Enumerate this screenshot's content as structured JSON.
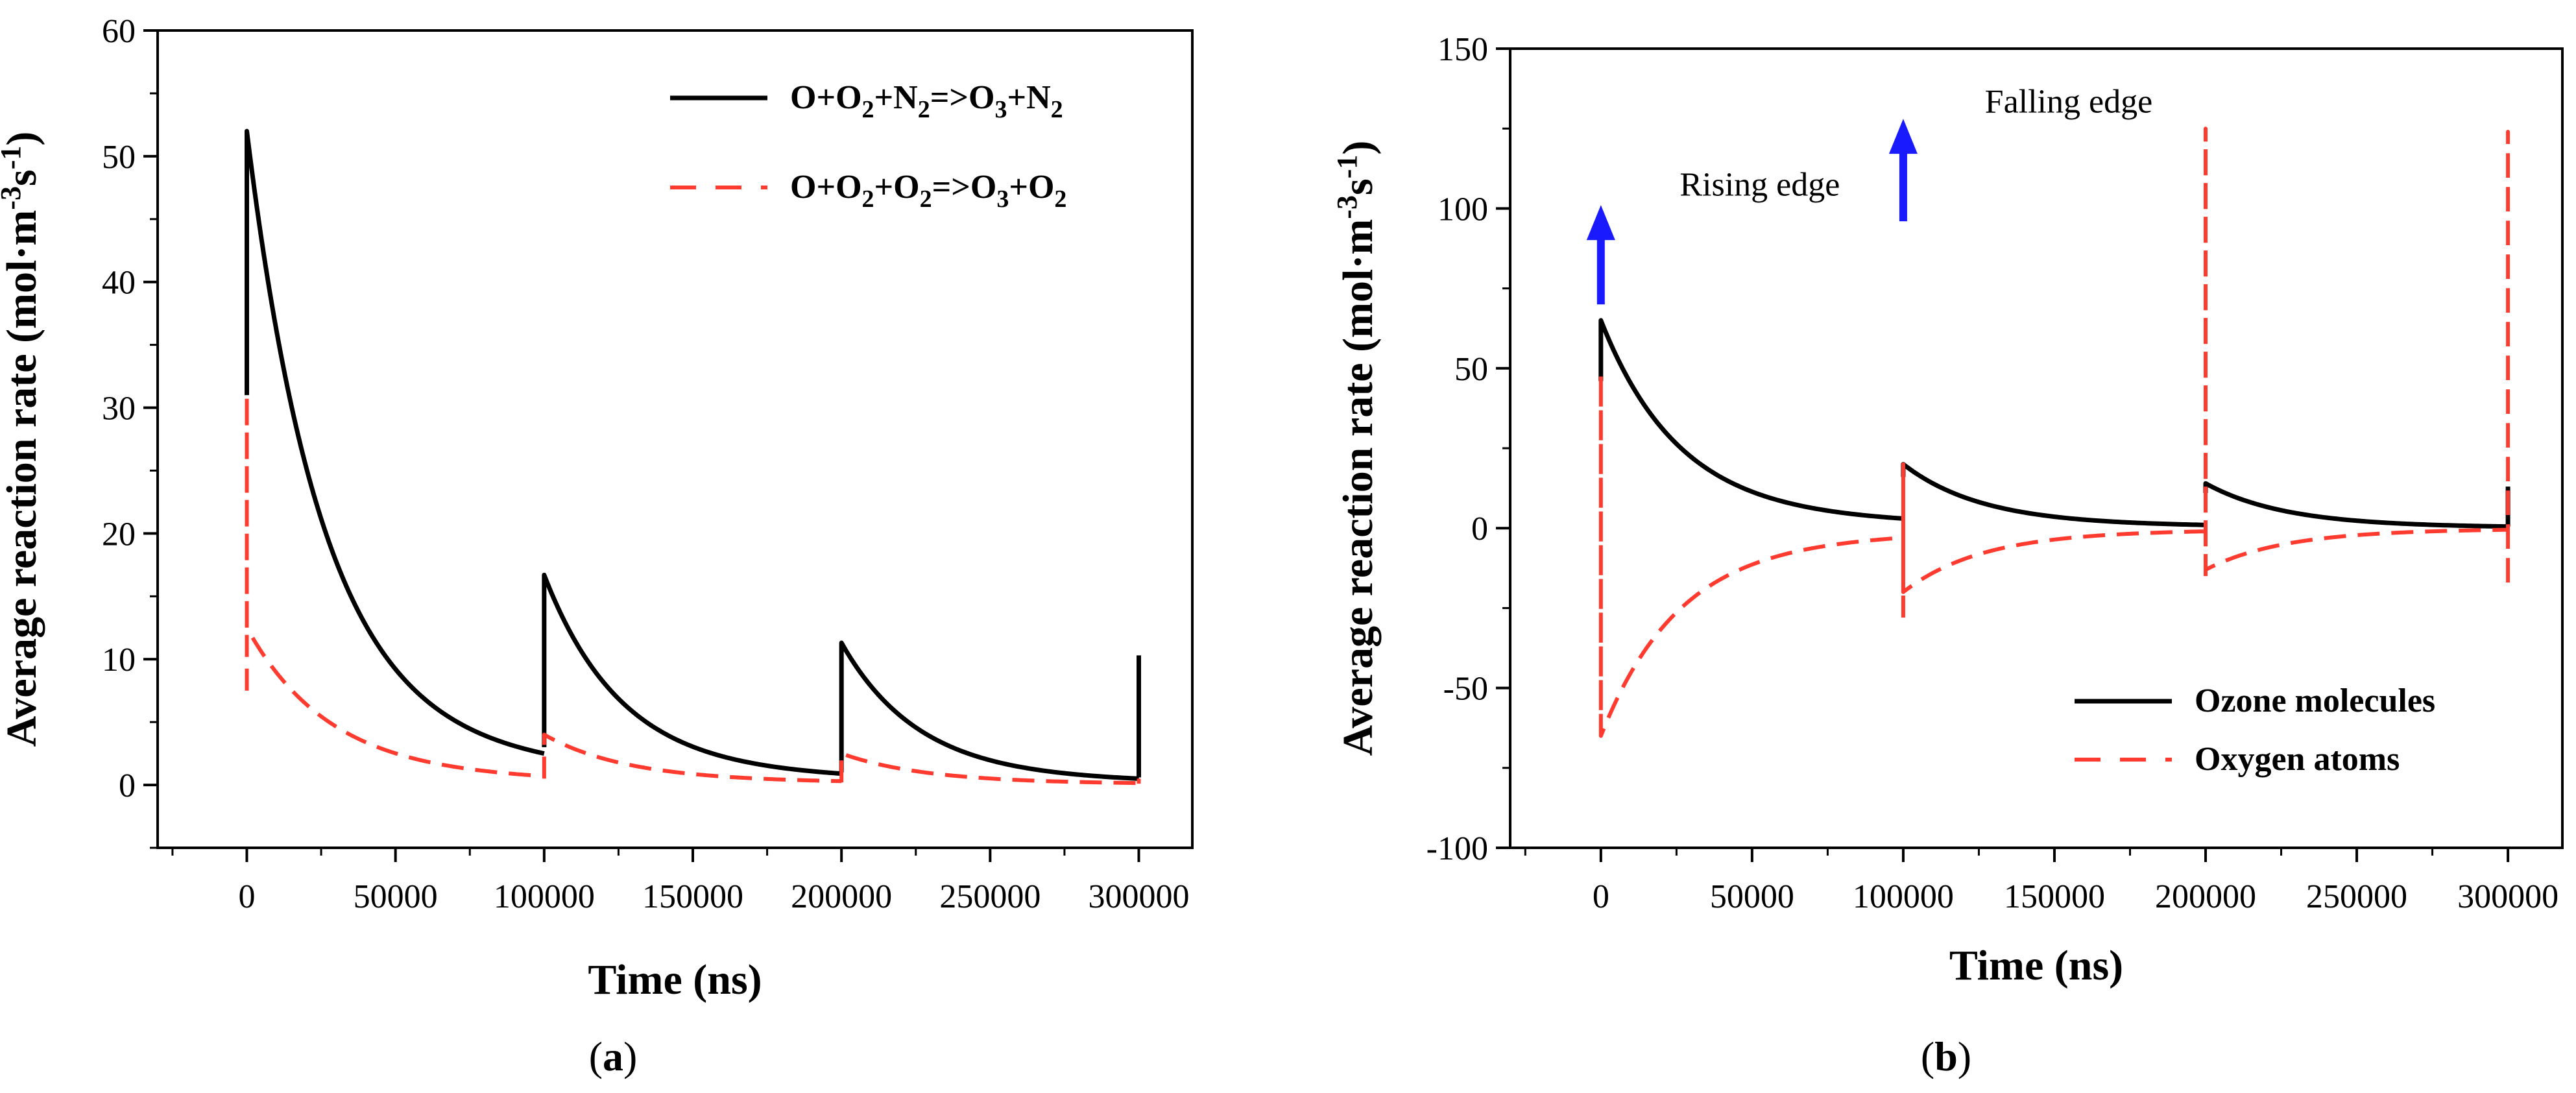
{
  "chart_data": [
    {
      "panel": "a",
      "panel_label": {
        "open": "(",
        "letter": "a",
        "close": ")"
      },
      "type": "line",
      "xlabel": "Time (ns)",
      "ylabel": {
        "main": "Average reaction rate (mol·m",
        "sup1": "-3",
        "mid": "s",
        "sup2": "-1",
        "end": ")"
      },
      "xlim": [
        -30000,
        318000
      ],
      "ylim": [
        -5,
        60
      ],
      "x_ticks": [
        0,
        50000,
        100000,
        150000,
        200000,
        250000,
        300000
      ],
      "y_ticks": [
        0,
        10,
        20,
        30,
        40,
        50,
        60
      ],
      "legend_position": "top-right",
      "series": [
        {
          "name": "O+O2+N2=>O3+N2",
          "legend_parts": [
            [
              "O+O",
              ""
            ],
            [
              "2",
              "sub"
            ],
            [
              "+N",
              ""
            ],
            [
              "2",
              "sub"
            ],
            [
              "=>O",
              ""
            ],
            [
              "3",
              "sub"
            ],
            [
              "+N",
              ""
            ],
            [
              "2",
              "sub"
            ]
          ],
          "color": "#000000",
          "style": "solid",
          "pulses": [
            {
              "t0": 0,
              "start": 31,
              "peak": 52,
              "end": 2.5
            },
            {
              "t0": 100000,
              "start": 3,
              "peak": 16.7,
              "end": 0.9
            },
            {
              "t0": 200000,
              "start": 1,
              "peak": 11.3,
              "end": 0.5
            },
            {
              "t0": 300000,
              "start": 0.6,
              "peak": 10.3,
              "end": 10.3
            }
          ],
          "tau": 26000
        },
        {
          "name": "O+O2+O2=>O3+O2",
          "legend_parts": [
            [
              "O+O",
              ""
            ],
            [
              "2",
              "sub"
            ],
            [
              "+O",
              ""
            ],
            [
              "2",
              "sub"
            ],
            [
              "=>O",
              ""
            ],
            [
              "3",
              "sub"
            ],
            [
              "+O",
              ""
            ],
            [
              "2",
              "sub"
            ]
          ],
          "color": "#ff3b30",
          "style": "dashed",
          "pulses": [
            {
              "t0": 0,
              "start": 7.5,
              "spike": 31,
              "peak": 12.5,
              "end": 0.7
            },
            {
              "t0": 100000,
              "start": 0.5,
              "spike": 4,
              "peak": 4,
              "end": 0.3
            },
            {
              "t0": 200000,
              "start": 0.2,
              "spike": 2.5,
              "peak": 2.5,
              "end": 0.15
            },
            {
              "t0": 300000,
              "start": 0.1,
              "spike": 0.5,
              "peak": 0.5,
              "end": 0.5
            }
          ],
          "tau": 28000
        }
      ]
    },
    {
      "panel": "b",
      "panel_label": {
        "open": "(",
        "letter": "b",
        "close": ")"
      },
      "type": "line",
      "xlabel": "Time (ns)",
      "ylabel": {
        "main": "Average reaction rate (mol·m",
        "sup1": "-3",
        "mid": "s",
        "sup2": "-1",
        "end": ")"
      },
      "xlim": [
        -30000,
        318000
      ],
      "ylim": [
        -100,
        150
      ],
      "x_ticks": [
        0,
        50000,
        100000,
        150000,
        200000,
        250000,
        300000
      ],
      "y_ticks": [
        -100,
        -50,
        0,
        50,
        100,
        150
      ],
      "legend_position": "bottom-right",
      "annotations": [
        {
          "text": "Rising edge",
          "x": 0,
          "arrow_from": 70,
          "arrow_to": 97,
          "label_y": 104,
          "color": "#1a1aff"
        },
        {
          "text": "Falling edge",
          "x": 100000,
          "arrow_from": 96,
          "arrow_to": 124,
          "label_y": 130,
          "color": "#1a1aff"
        }
      ],
      "series": [
        {
          "name": "Ozone molecules",
          "color": "#000000",
          "style": "solid",
          "pulses": [
            {
              "t0": 0,
              "start": 46,
              "peak": 65,
              "end": 3
            },
            {
              "t0": 100000,
              "start": 16,
              "peak": 20,
              "end": 1
            },
            {
              "t0": 200000,
              "start": 11,
              "peak": 14,
              "end": 0.5
            },
            {
              "t0": 300000,
              "start": 0.5,
              "peak": 13,
              "end": 13
            }
          ],
          "tau": 26000
        },
        {
          "name": "Oxygen atoms",
          "color": "#ff3b30",
          "style": "dashed",
          "pulses": [
            {
              "t0": 0,
              "spike": 48,
              "peak": -65,
              "end": -3
            },
            {
              "t0": 100000,
              "spike": 20,
              "low": -28,
              "peak": -20,
              "end": -1
            },
            {
              "t0": 200000,
              "spike": 125,
              "low": -15,
              "peak": -13,
              "end": -0.5
            },
            {
              "t0": 300000,
              "spike": 124,
              "low": -17,
              "peak": -17,
              "end": -17
            }
          ],
          "tau": 26000
        }
      ]
    }
  ]
}
